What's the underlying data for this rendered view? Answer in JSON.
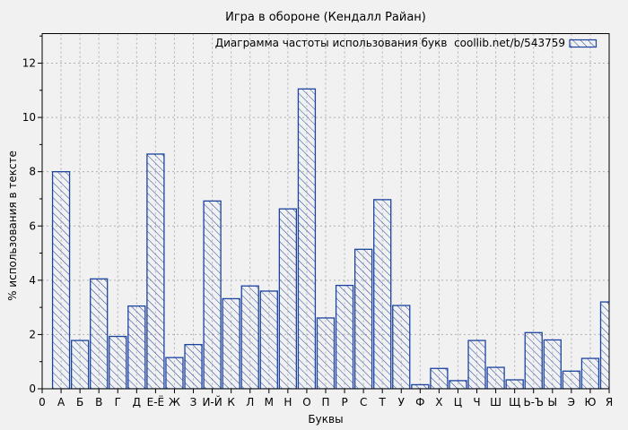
{
  "figure": {
    "background_color": "#f1f1f1",
    "grid_color": "#b0b0b0",
    "axis_color": "#000000"
  },
  "chart_data": {
    "type": "bar",
    "title": "Игра в обороне (Кендалл Райан)",
    "legend": "Диаграмма частоты использования букв  coollib.net/b/543759",
    "legend_position": "top-right-inside",
    "xlabel": "Буквы",
    "ylabel": "% использования в тексте",
    "bar_color": "#1c43a0",
    "hatch": "diagonal-backslash",
    "grid": true,
    "yticks": [
      0,
      2,
      4,
      6,
      8,
      10,
      12
    ],
    "ylim": [
      0,
      13.1
    ],
    "categories": [
      "0",
      "А",
      "Б",
      "В",
      "Г",
      "Д",
      "Е-Ё",
      "Ж",
      "З",
      "И-Й",
      "К",
      "Л",
      "М",
      "Н",
      "О",
      "П",
      "Р",
      "С",
      "Т",
      "У",
      "Ф",
      "Х",
      "Ц",
      "Ч",
      "Ш",
      "Щ",
      "Ь-Ъ",
      "Ы",
      "Э",
      "Ю",
      "Я"
    ],
    "values": [
      null,
      8.0,
      1.78,
      4.05,
      1.93,
      3.05,
      8.65,
      1.15,
      1.63,
      6.92,
      3.32,
      3.79,
      3.6,
      6.63,
      11.05,
      2.61,
      3.81,
      5.14,
      6.97,
      3.07,
      0.15,
      0.75,
      0.3,
      1.78,
      0.79,
      0.33,
      2.07,
      1.8,
      0.65,
      1.12,
      3.2
    ]
  }
}
